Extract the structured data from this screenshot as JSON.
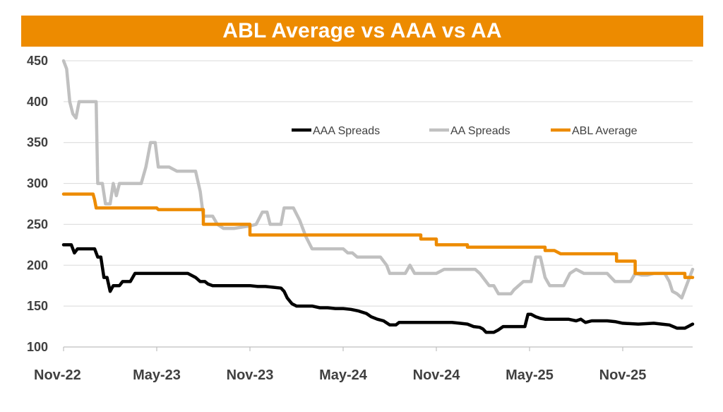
{
  "chart_data": {
    "type": "line",
    "title": "ABL Average vs AAA vs AA",
    "xlabel": "",
    "ylabel": "",
    "ylim": [
      100,
      450
    ],
    "yticks": [
      100,
      150,
      200,
      250,
      300,
      350,
      400,
      450
    ],
    "xlim": [
      0,
      40.5
    ],
    "xtick_positions": [
      0,
      6,
      12,
      18,
      24,
      30,
      36
    ],
    "xtick_labels": [
      "Nov-22",
      "May-23",
      "Nov-23",
      "May-24",
      "Nov-24",
      "May-25",
      "Nov-25"
    ],
    "grid": "horizontal",
    "legend_position": "top-right",
    "x_unit": "months since Nov-22",
    "series": [
      {
        "name": "AAA Spreads",
        "color": "#000000",
        "points": [
          [
            0,
            225
          ],
          [
            0.5,
            225
          ],
          [
            0.7,
            215
          ],
          [
            0.9,
            220
          ],
          [
            1.5,
            220
          ],
          [
            2,
            220
          ],
          [
            2.2,
            210
          ],
          [
            2.4,
            210
          ],
          [
            2.6,
            185
          ],
          [
            2.8,
            185
          ],
          [
            3.0,
            168
          ],
          [
            3.2,
            175
          ],
          [
            3.6,
            175
          ],
          [
            3.8,
            180
          ],
          [
            4.3,
            180
          ],
          [
            4.6,
            190
          ],
          [
            5,
            190
          ],
          [
            6,
            190
          ],
          [
            7,
            190
          ],
          [
            8,
            190
          ],
          [
            8.5,
            185
          ],
          [
            8.8,
            180
          ],
          [
            9.1,
            180
          ],
          [
            9.3,
            177
          ],
          [
            9.6,
            175
          ],
          [
            10,
            175
          ],
          [
            11,
            175
          ],
          [
            12,
            175
          ],
          [
            12.5,
            174
          ],
          [
            13,
            174
          ],
          [
            13.5,
            173
          ],
          [
            14,
            172
          ],
          [
            14.2,
            168
          ],
          [
            14.4,
            160
          ],
          [
            14.7,
            153
          ],
          [
            15,
            150
          ],
          [
            15.5,
            150
          ],
          [
            16,
            150
          ],
          [
            16.5,
            148
          ],
          [
            17,
            148
          ],
          [
            17.5,
            147
          ],
          [
            18,
            147
          ],
          [
            18.5,
            146
          ],
          [
            19,
            144
          ],
          [
            19.5,
            141
          ],
          [
            19.8,
            137
          ],
          [
            20.2,
            134
          ],
          [
            20.6,
            132
          ],
          [
            21,
            127
          ],
          [
            21.4,
            127
          ],
          [
            21.6,
            130
          ],
          [
            22,
            130
          ],
          [
            23,
            130
          ],
          [
            24,
            130
          ],
          [
            25,
            130
          ],
          [
            25.5,
            129
          ],
          [
            26,
            128
          ],
          [
            26.4,
            125
          ],
          [
            26.8,
            124
          ],
          [
            27,
            122
          ],
          [
            27.2,
            118
          ],
          [
            27.4,
            118
          ],
          [
            27.7,
            118
          ],
          [
            28,
            121
          ],
          [
            28.3,
            125
          ],
          [
            28.7,
            125
          ],
          [
            29,
            125
          ],
          [
            29.4,
            125
          ],
          [
            29.7,
            125
          ],
          [
            29.9,
            140
          ],
          [
            30.1,
            140
          ],
          [
            30.4,
            137
          ],
          [
            30.7,
            135
          ],
          [
            31,
            134
          ],
          [
            32,
            134
          ],
          [
            32.5,
            134
          ],
          [
            33,
            132
          ],
          [
            33.3,
            134
          ],
          [
            33.6,
            130
          ],
          [
            34,
            132
          ],
          [
            35,
            132
          ],
          [
            35.5,
            131
          ],
          [
            36,
            129
          ],
          [
            37,
            128
          ],
          [
            38,
            129
          ],
          [
            38.5,
            128
          ],
          [
            39,
            127
          ],
          [
            39.5,
            123
          ],
          [
            40,
            123
          ],
          [
            40.2,
            125
          ],
          [
            40.4,
            127
          ],
          [
            40.5,
            128
          ]
        ]
      },
      {
        "name": "AA Spreads",
        "color": "#C0C0C0",
        "points": [
          [
            0,
            450
          ],
          [
            0.2,
            440
          ],
          [
            0.4,
            400
          ],
          [
            0.6,
            385
          ],
          [
            0.8,
            380
          ],
          [
            1,
            400
          ],
          [
            2,
            400
          ],
          [
            2.1,
            400
          ],
          [
            2.2,
            300
          ],
          [
            2.5,
            300
          ],
          [
            2.7,
            275
          ],
          [
            3,
            275
          ],
          [
            3.2,
            300
          ],
          [
            3.4,
            285
          ],
          [
            3.6,
            300
          ],
          [
            4.2,
            300
          ],
          [
            5,
            300
          ],
          [
            5.3,
            320
          ],
          [
            5.6,
            350
          ],
          [
            5.9,
            350
          ],
          [
            6.1,
            320
          ],
          [
            6.5,
            320
          ],
          [
            6.8,
            320
          ],
          [
            7,
            318
          ],
          [
            7.3,
            315
          ],
          [
            8,
            315
          ],
          [
            8.5,
            315
          ],
          [
            8.8,
            290
          ],
          [
            9,
            260
          ],
          [
            9.6,
            260
          ],
          [
            9.9,
            250
          ],
          [
            10.3,
            245
          ],
          [
            11,
            245
          ],
          [
            12,
            248
          ],
          [
            12.4,
            250
          ],
          [
            12.8,
            265
          ],
          [
            13.1,
            265
          ],
          [
            13.3,
            250
          ],
          [
            14,
            250
          ],
          [
            14.2,
            270
          ],
          [
            14.8,
            270
          ],
          [
            15.2,
            255
          ],
          [
            15.6,
            235
          ],
          [
            16,
            220
          ],
          [
            16.5,
            220
          ],
          [
            17,
            220
          ],
          [
            17.5,
            220
          ],
          [
            18,
            220
          ],
          [
            18.3,
            215
          ],
          [
            18.6,
            215
          ],
          [
            18.9,
            210
          ],
          [
            19.5,
            210
          ],
          [
            20.4,
            210
          ],
          [
            20.8,
            200
          ],
          [
            21,
            190
          ],
          [
            21.5,
            190
          ],
          [
            22,
            190
          ],
          [
            22.3,
            200
          ],
          [
            22.6,
            190
          ],
          [
            23,
            190
          ],
          [
            24,
            190
          ],
          [
            24.5,
            195
          ],
          [
            25,
            195
          ],
          [
            25.5,
            195
          ],
          [
            26,
            195
          ],
          [
            26.5,
            195
          ],
          [
            26.8,
            190
          ],
          [
            27,
            185
          ],
          [
            27.4,
            175
          ],
          [
            27.7,
            175
          ],
          [
            28,
            165
          ],
          [
            28.5,
            165
          ],
          [
            28.8,
            165
          ],
          [
            29,
            170
          ],
          [
            29.3,
            175
          ],
          [
            29.6,
            180
          ],
          [
            30.1,
            180
          ],
          [
            30.4,
            210
          ],
          [
            30.7,
            210
          ],
          [
            31,
            185
          ],
          [
            31.3,
            175
          ],
          [
            31.8,
            175
          ],
          [
            32.2,
            175
          ],
          [
            32.6,
            190
          ],
          [
            33,
            195
          ],
          [
            33.5,
            190
          ],
          [
            34,
            190
          ],
          [
            35,
            190
          ],
          [
            35.5,
            180
          ],
          [
            36,
            180
          ],
          [
            36.5,
            180
          ],
          [
            36.8,
            190
          ],
          [
            37.2,
            188
          ],
          [
            37.6,
            188
          ],
          [
            38,
            190
          ],
          [
            38.4,
            190
          ],
          [
            38.7,
            190
          ],
          [
            39,
            180
          ],
          [
            39.2,
            168
          ],
          [
            39.5,
            165
          ],
          [
            39.8,
            160
          ],
          [
            40.1,
            175
          ],
          [
            40.3,
            185
          ],
          [
            40.5,
            195
          ]
        ]
      },
      {
        "name": "ABL Average",
        "color": "#ED8B00",
        "points": [
          [
            0,
            287
          ],
          [
            1.9,
            287
          ],
          [
            2,
            280
          ],
          [
            2.1,
            270
          ],
          [
            4,
            270
          ],
          [
            5,
            270
          ],
          [
            6,
            270
          ],
          [
            6.1,
            268
          ],
          [
            7,
            268
          ],
          [
            8,
            268
          ],
          [
            9,
            268
          ],
          [
            9,
            250
          ],
          [
            10,
            250
          ],
          [
            11,
            250
          ],
          [
            12,
            250
          ],
          [
            12,
            237
          ],
          [
            13,
            237
          ],
          [
            14,
            237
          ],
          [
            15,
            237
          ],
          [
            16,
            237
          ],
          [
            17,
            237
          ],
          [
            18,
            237
          ],
          [
            19,
            237
          ],
          [
            20,
            237
          ],
          [
            21,
            237
          ],
          [
            22,
            237
          ],
          [
            23,
            237
          ],
          [
            23,
            232
          ],
          [
            24,
            232
          ],
          [
            24,
            225
          ],
          [
            25,
            225
          ],
          [
            26,
            225
          ],
          [
            26,
            222
          ],
          [
            27,
            222
          ],
          [
            28,
            222
          ],
          [
            29,
            222
          ],
          [
            30,
            222
          ],
          [
            31,
            222
          ],
          [
            31,
            218
          ],
          [
            31.6,
            218
          ],
          [
            32,
            214
          ],
          [
            33,
            214
          ],
          [
            34,
            214
          ],
          [
            35,
            214
          ],
          [
            35.6,
            214
          ],
          [
            35.6,
            205
          ],
          [
            36.8,
            205
          ],
          [
            36.8,
            190
          ],
          [
            38,
            190
          ],
          [
            39,
            190
          ],
          [
            40,
            190
          ],
          [
            40,
            185
          ],
          [
            40.5,
            185
          ]
        ]
      }
    ]
  }
}
